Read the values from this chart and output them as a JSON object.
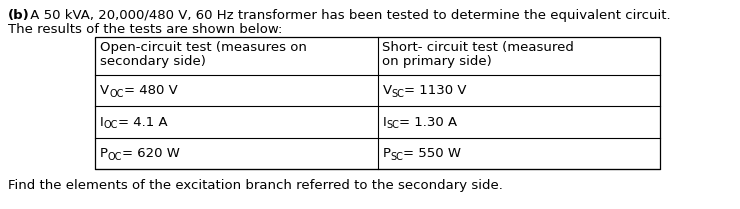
{
  "title_bold": "(b)",
  "title_rest": " A 50 kVA, 20,000/480 V, 60 Hz transformer has been tested to determine the equivalent circuit.",
  "subtitle": "The results of the tests are shown below:",
  "footer": "Find the elements of the excitation branch referred to the secondary side.",
  "col1_header_line1": "Open-circuit test (measures on",
  "col1_header_line2": "secondary side)",
  "col2_header_line1": "Short- circuit test (measured",
  "col2_header_line2": "on primary side)",
  "col1_row1_main": "V",
  "col1_row1_sub": "OC",
  "col1_row1_rest": "= 480 V",
  "col1_row2_main": "I",
  "col1_row2_sub": "OC",
  "col1_row2_rest": "= 4.1 A",
  "col1_row3_main": "P",
  "col1_row3_sub": "OC",
  "col1_row3_rest": "= 620 W",
  "col2_row1_main": "V",
  "col2_row1_sub": "SC",
  "col2_row1_rest": "= 1130 V",
  "col2_row2_main": "I",
  "col2_row2_sub": "SC",
  "col2_row2_rest": "= 1.30 A",
  "col2_row3_main": "P",
  "col2_row3_sub": "SC",
  "col2_row3_rest": "= 550 W",
  "bg_color": "#ffffff",
  "text_color": "#000000",
  "font_size": 9.5,
  "bold_font_size": 9.5,
  "sub_font_size": 7.0
}
